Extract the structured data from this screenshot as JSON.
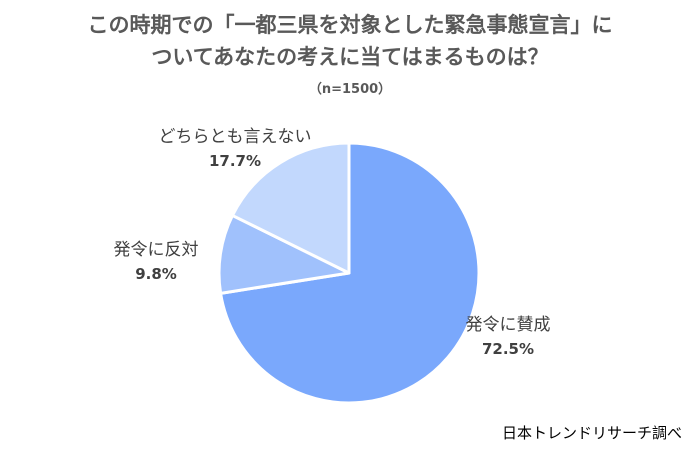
{
  "title_line1": "この時期での「一都三県を対象とした緊急事態宣言」に",
  "title_line2": "ついてあなたの考えに当てはまるものは？",
  "subtitle": "（n=1500）",
  "source": "日本トレンドリサーチ調べ",
  "chart_data": {
    "type": "pie",
    "slices": [
      {
        "label": "発令に賛成",
        "value": 72.5,
        "value_label": "72.5%",
        "color": "#7aa8fc"
      },
      {
        "label": "発令に反対",
        "value": 9.8,
        "value_label": "9.8%",
        "color": "#a0c1fc"
      },
      {
        "label": "どちらとも言えない",
        "value": 17.7,
        "value_label": "17.7%",
        "color": "#c2d8fd"
      }
    ]
  }
}
